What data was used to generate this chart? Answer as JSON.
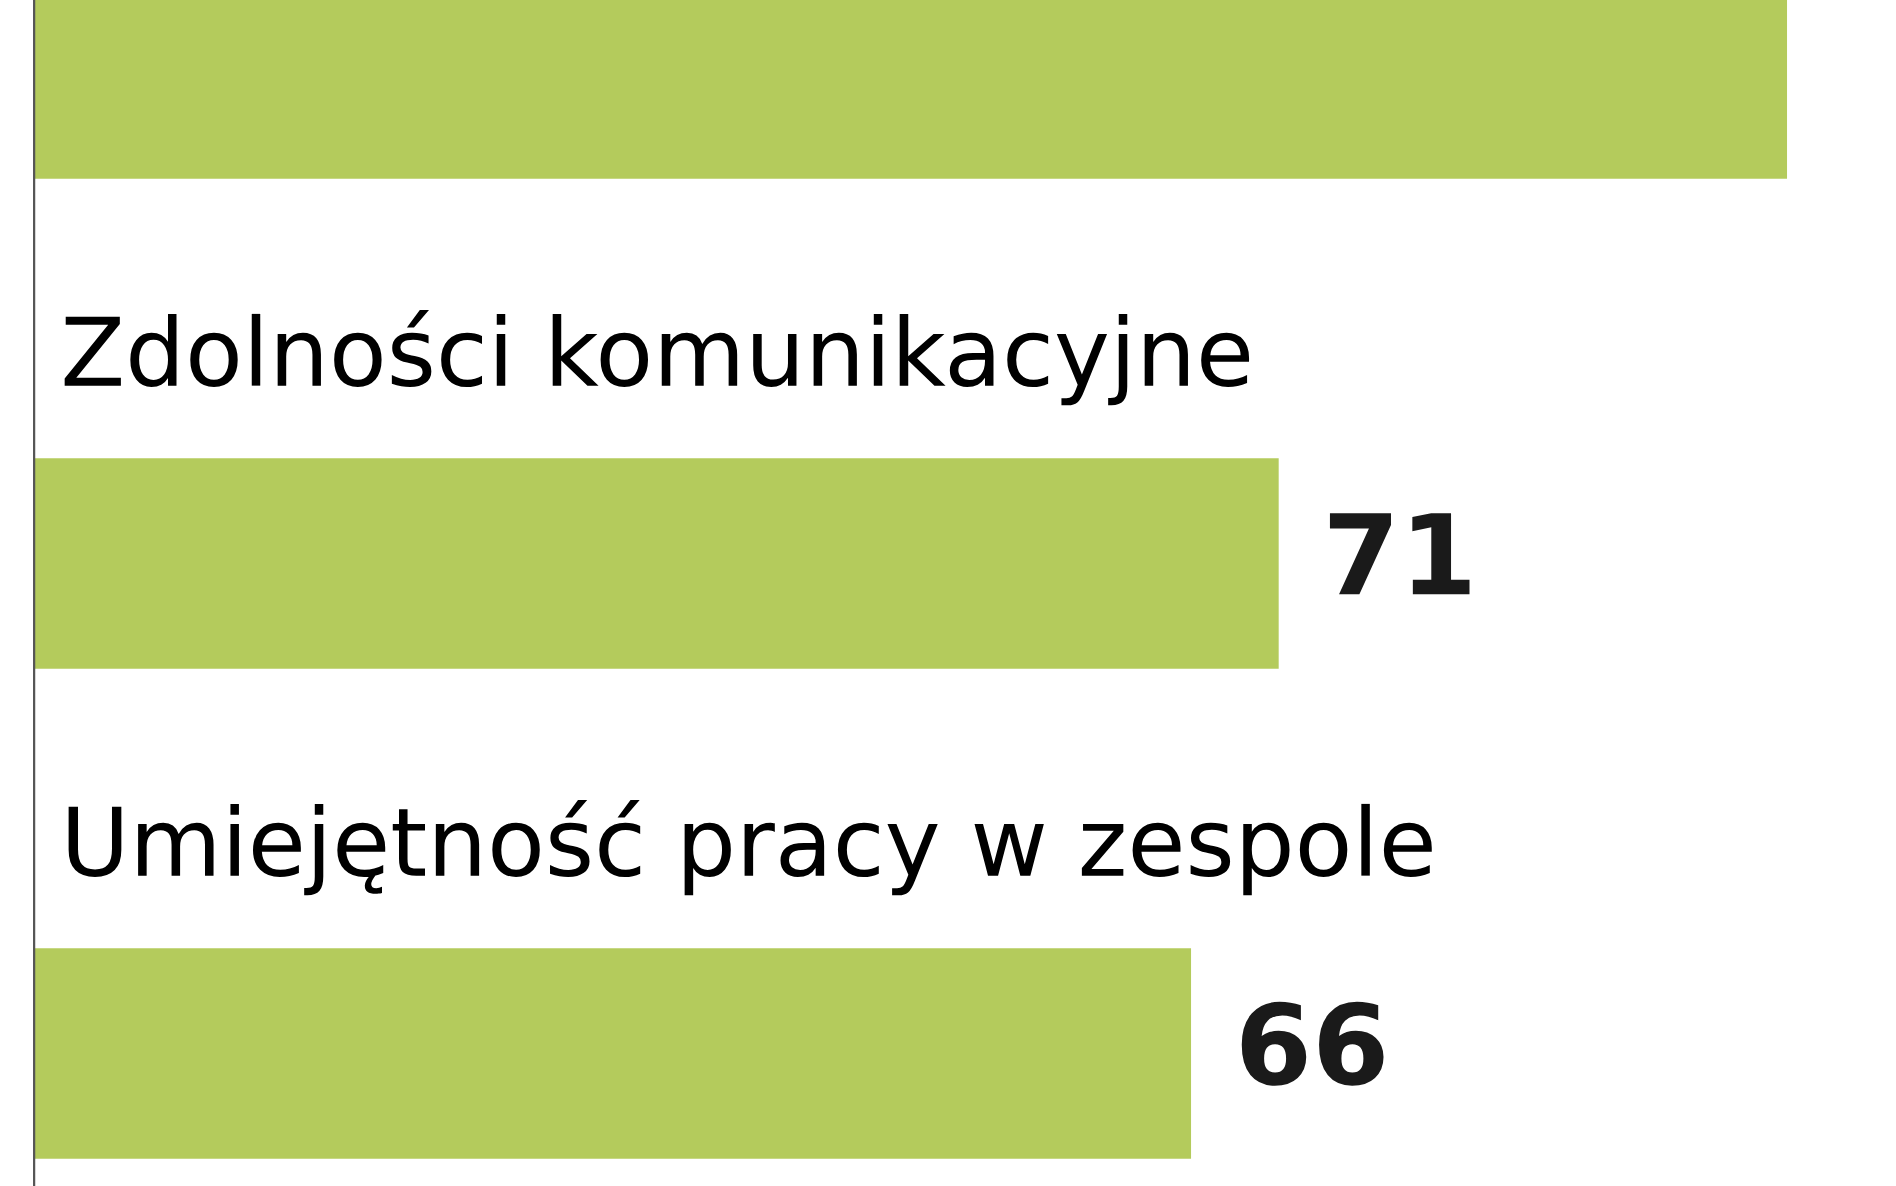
{
  "chart_data": {
    "type": "bar",
    "orientation": "horizontal",
    "categories": [
      null,
      "Zdolności komunikacyjne",
      "Umiejętność pracy w zespole"
    ],
    "values": [
      100,
      71,
      66
    ],
    "value_labels": [
      null,
      "71",
      "66"
    ],
    "color": "#b4cb5c"
  }
}
